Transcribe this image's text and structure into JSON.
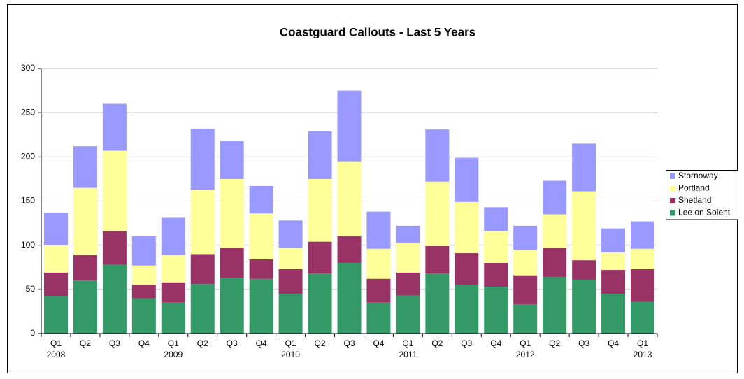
{
  "chart_data": {
    "type": "stacked-bar",
    "title": "Coastguard Callouts - Last 5 Years",
    "categories": [
      "Q1",
      "Q2",
      "Q3",
      "Q4",
      "Q1",
      "Q2",
      "Q3",
      "Q4",
      "Q1",
      "Q2",
      "Q3",
      "Q4",
      "Q1",
      "Q2",
      "Q3",
      "Q4",
      "Q1",
      "Q2",
      "Q3",
      "Q4",
      "Q1"
    ],
    "category_groups": [
      "2008",
      null,
      null,
      null,
      "2009",
      null,
      null,
      null,
      "2010",
      null,
      null,
      null,
      "2011",
      null,
      null,
      null,
      "2012",
      null,
      null,
      null,
      "2013"
    ],
    "series": [
      {
        "name": "Lee on Solent",
        "color": "#339966",
        "values": [
          42,
          60,
          78,
          40,
          35,
          56,
          63,
          62,
          45,
          68,
          80,
          35,
          43,
          68,
          55,
          53,
          33,
          64,
          61,
          45,
          36
        ]
      },
      {
        "name": "Shetland",
        "color": "#993366",
        "values": [
          27,
          29,
          38,
          15,
          23,
          34,
          34,
          22,
          28,
          36,
          30,
          27,
          26,
          31,
          36,
          27,
          33,
          33,
          22,
          27,
          37
        ]
      },
      {
        "name": "Portland",
        "color": "#ffff99",
        "values": [
          31,
          76,
          91,
          22,
          31,
          73,
          78,
          52,
          24,
          71,
          85,
          34,
          34,
          73,
          58,
          36,
          29,
          38,
          78,
          20,
          23
        ]
      },
      {
        "name": "Stornoway",
        "color": "#9999ff",
        "values": [
          37,
          47,
          53,
          33,
          42,
          69,
          43,
          31,
          31,
          54,
          80,
          42,
          19,
          59,
          50,
          27,
          27,
          38,
          54,
          27,
          31
        ]
      }
    ],
    "ylim": [
      0,
      300
    ],
    "yticks": [
      0,
      50,
      100,
      150,
      200,
      250,
      300
    ],
    "grid": true,
    "legend": "right"
  }
}
